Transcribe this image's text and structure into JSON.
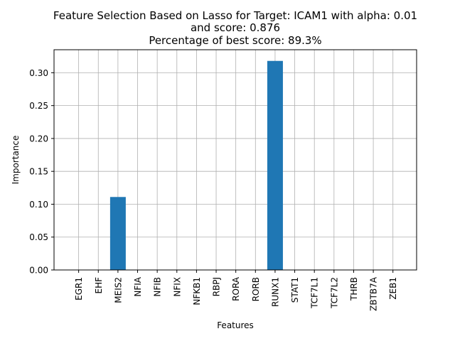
{
  "chart_data": {
    "type": "bar",
    "title_lines": [
      "Feature Selection Based on Lasso for Target: ICAM1 with alpha: 0.01",
      "and score: 0.876",
      "Percentage of best score: 89.3%"
    ],
    "xlabel": "Features",
    "ylabel": "Importance",
    "categories": [
      "EGR1",
      "EHF",
      "MEIS2",
      "NFIA",
      "NFIB",
      "NFIX",
      "NFKB1",
      "RBPJ",
      "RORA",
      "RORB",
      "RUNX1",
      "STAT1",
      "TCF7L1",
      "TCF7L2",
      "THRB",
      "ZBTB7A",
      "ZEB1"
    ],
    "values": [
      0,
      0,
      0.111,
      0,
      0,
      0,
      0,
      0,
      0,
      0,
      0.318,
      0,
      0,
      0,
      0,
      0,
      0
    ],
    "ylim": [
      0,
      0.335
    ],
    "yticks": [
      "0.00",
      "0.05",
      "0.10",
      "0.15",
      "0.20",
      "0.25",
      "0.30"
    ],
    "grid": true,
    "bar_color": "#1f77b4"
  }
}
